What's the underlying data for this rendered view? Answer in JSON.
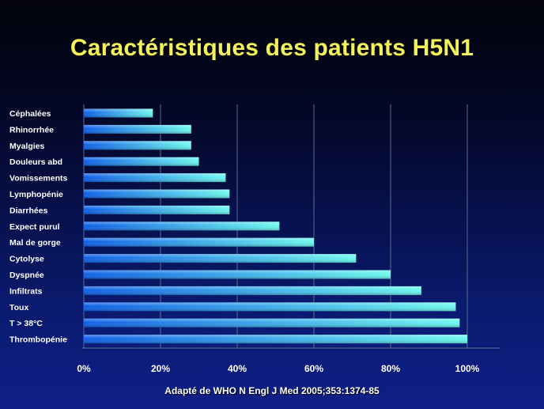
{
  "chart_data": {
    "type": "bar",
    "orientation": "horizontal",
    "title": "Caractéristiques des patients H5N1",
    "source": "Adapté de WHO N Engl J Med 2005;353:1374-85",
    "categories": [
      "Céphalées",
      "Rhinorrhée",
      "Myalgies",
      "Douleurs abd",
      "Vomissements",
      "Lymphopénie",
      "Diarrhées",
      "Expect purul",
      "Mal de gorge",
      "Cytolyse",
      "Dyspnée",
      "Infiltrats",
      "Toux",
      "T > 38°C",
      "Thrombopénie"
    ],
    "values": [
      18,
      28,
      28,
      30,
      37,
      38,
      38,
      51,
      60,
      71,
      80,
      88,
      97,
      98,
      100
    ],
    "xlim": [
      0,
      100
    ],
    "xticks": [
      "0%",
      "20%",
      "40%",
      "60%",
      "80%",
      "100%"
    ],
    "grid": true,
    "colors": {
      "bar_start": "#0f5fe6",
      "bar_end": "#6cf8ee",
      "title": "#f4f25a",
      "text": "#ffffff",
      "grid": "#5a6b8e"
    }
  }
}
